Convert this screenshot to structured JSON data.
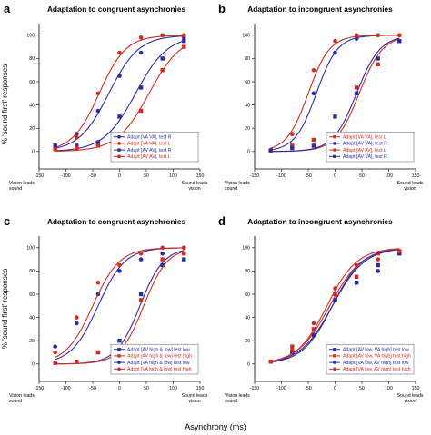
{
  "figure": {
    "y_axis_label": "% 'sound first' responses",
    "x_axis_label": "Asynchrony (ms)",
    "colors": {
      "red": "#d42b1e",
      "blue": "#2b2ba6"
    }
  },
  "chart_data": [
    {
      "type": "scatter",
      "panel_letter": "a",
      "title": "Adaptation to congruent asynchronies",
      "x_ticks": [
        -150,
        -100,
        -50,
        0,
        50,
        100,
        150
      ],
      "y_ticks": [
        0,
        20,
        40,
        60,
        80,
        100
      ],
      "xlim": [
        -150,
        150
      ],
      "ylim": [
        -15,
        110
      ],
      "left_end_label": [
        "Vision leads",
        "sound"
      ],
      "right_end_label": [
        "Sound leads",
        "vision"
      ],
      "legend_position": "bottom-right",
      "series": [
        {
          "name": "Adapt [VA VA], test R",
          "color": "#2b2ba6",
          "marker": "circle",
          "x": [
            -120,
            -80,
            -40,
            0,
            40,
            80,
            120
          ],
          "y": [
            5,
            15,
            35,
            65,
            85,
            100,
            98
          ],
          "pse": -20,
          "slope": 28
        },
        {
          "name": "Adapt [VA VA], test L",
          "color": "#d42b1e",
          "marker": "circle",
          "x": [
            -120,
            -80,
            -40,
            0,
            40,
            80,
            120
          ],
          "y": [
            3,
            12,
            50,
            85,
            98,
            100,
            100
          ],
          "pse": -38,
          "slope": 25
        },
        {
          "name": "Adapt [AV AV], test R",
          "color": "#2b2ba6",
          "marker": "square",
          "x": [
            -120,
            -80,
            -40,
            0,
            40,
            80,
            120
          ],
          "y": [
            5,
            5,
            8,
            30,
            55,
            80,
            95
          ],
          "pse": 30,
          "slope": 30
        },
        {
          "name": "Adapt [AV AV], test L",
          "color": "#d42b1e",
          "marker": "square",
          "x": [
            -120,
            -80,
            -40,
            0,
            40,
            80,
            120
          ],
          "y": [
            2,
            3,
            5,
            15,
            35,
            70,
            90
          ],
          "pse": 55,
          "slope": 30
        }
      ]
    },
    {
      "type": "scatter",
      "panel_letter": "b",
      "title": "Adaptation to incongruent asynchronies",
      "x_ticks": [
        -150,
        -100,
        -50,
        0,
        50,
        100,
        150
      ],
      "y_ticks": [
        0,
        20,
        40,
        60,
        80,
        100
      ],
      "xlim": [
        -150,
        150
      ],
      "ylim": [
        -15,
        110
      ],
      "left_end_label": [
        "Vision leads",
        "sound"
      ],
      "right_end_label": [
        "Sound leads",
        "vision"
      ],
      "legend_position": "bottom-right",
      "series": [
        {
          "name": "Adapt [VA VA], test L",
          "color": "#d42b1e",
          "marker": "square",
          "x": [
            -120,
            -80,
            -40,
            0,
            40,
            80,
            120
          ],
          "y": [
            1,
            5,
            10,
            15,
            55,
            75,
            95
          ],
          "pse": 45,
          "slope": 22
        },
        {
          "name": "Adapt [AV VA], test R",
          "color": "#2b2ba6",
          "marker": "circle",
          "x": [
            -120,
            -80,
            -40,
            0,
            40,
            80,
            120
          ],
          "y": [
            1,
            15,
            50,
            85,
            97,
            100,
            100
          ],
          "pse": -35,
          "slope": 20
        },
        {
          "name": "Adapt [AV AV], test L",
          "color": "#d42b1e",
          "marker": "circle",
          "x": [
            -120,
            -80,
            -40,
            0,
            40,
            80,
            120
          ],
          "y": [
            1,
            15,
            70,
            95,
            100,
            100,
            100
          ],
          "pse": -50,
          "slope": 20
        },
        {
          "name": "Adapt [AV VA], test R",
          "color": "#2b2ba6",
          "marker": "square",
          "x": [
            -120,
            -80,
            -40,
            0,
            40,
            80,
            120
          ],
          "y": [
            1,
            3,
            5,
            30,
            50,
            80,
            95
          ],
          "pse": 40,
          "slope": 22
        }
      ]
    },
    {
      "type": "scatter",
      "panel_letter": "c",
      "title": "Adaptation to congruent asynchronies",
      "x_ticks": [
        -150,
        -100,
        -50,
        0,
        50,
        100,
        150
      ],
      "y_ticks": [
        0,
        20,
        40,
        60,
        80,
        100
      ],
      "xlim": [
        -150,
        150
      ],
      "ylim": [
        -15,
        110
      ],
      "left_end_label": [
        "Vision leads",
        "sound"
      ],
      "right_end_label": [
        "Sound leads",
        "vision"
      ],
      "legend_position": "bottom-right",
      "series": [
        {
          "name": "Adapt [AV high & low] test low",
          "color": "#2b2ba6",
          "marker": "square",
          "x": [
            -120,
            -80,
            -40,
            0,
            40,
            80,
            120
          ],
          "y": [
            1,
            2,
            10,
            20,
            60,
            85,
            90
          ],
          "pse": 38,
          "slope": 22
        },
        {
          "name": "Adapt [AV high & low] test high",
          "color": "#d42b1e",
          "marker": "square",
          "x": [
            -120,
            -80,
            -40,
            0,
            40,
            80,
            120
          ],
          "y": [
            1,
            2,
            10,
            15,
            55,
            90,
            95
          ],
          "pse": 45,
          "slope": 22
        },
        {
          "name": "Adapt [VA high & low] test low",
          "color": "#2b2ba6",
          "marker": "circle",
          "x": [
            -120,
            -80,
            -40,
            0,
            40,
            80,
            120
          ],
          "y": [
            15,
            35,
            60,
            80,
            90,
            95,
            100
          ],
          "pse": -40,
          "slope": 25
        },
        {
          "name": "Adapt [VA high & low] test high",
          "color": "#d42b1e",
          "marker": "circle",
          "x": [
            -120,
            -80,
            -40,
            0,
            40,
            80,
            120
          ],
          "y": [
            10,
            40,
            70,
            85,
            95,
            100,
            100
          ],
          "pse": -50,
          "slope": 25
        }
      ]
    },
    {
      "type": "scatter",
      "panel_letter": "d",
      "title": "Adaptation to incongruent asynchronies",
      "x_ticks": [
        -150,
        -100,
        -50,
        0,
        50,
        100,
        150
      ],
      "y_ticks": [
        0,
        20,
        40,
        60,
        80,
        100
      ],
      "xlim": [
        -150,
        150
      ],
      "ylim": [
        -15,
        110
      ],
      "left_end_label": [
        "Vision leads",
        "sound"
      ],
      "right_end_label": [
        "Sound leads",
        "vision"
      ],
      "legend_position": "bottom-right",
      "series": [
        {
          "name": "Adapt [AV low, VA high] test low",
          "color": "#2b2ba6",
          "marker": "square",
          "x": [
            -120,
            -80,
            -40,
            0,
            40,
            80,
            120
          ],
          "y": [
            2,
            10,
            25,
            55,
            70,
            85,
            95
          ],
          "pse": -5,
          "slope": 30
        },
        {
          "name": "Adapt [AV low, VA high] test high",
          "color": "#d42b1e",
          "marker": "square",
          "x": [
            -120,
            -80,
            -40,
            0,
            40,
            80,
            120
          ],
          "y": [
            2,
            15,
            30,
            60,
            75,
            95,
            97
          ],
          "pse": -10,
          "slope": 30
        },
        {
          "name": "Adapt [VA low, AV high] test low",
          "color": "#2b2ba6",
          "marker": "circle",
          "x": [
            -120,
            -80,
            -40,
            0,
            40,
            80,
            120
          ],
          "y": [
            2,
            10,
            25,
            55,
            70,
            80,
            95
          ],
          "pse": -5,
          "slope": 28
        },
        {
          "name": "Adapt [VA low, AV high] test high",
          "color": "#d42b1e",
          "marker": "circle",
          "x": [
            -120,
            -80,
            -40,
            0,
            40,
            80,
            120
          ],
          "y": [
            2,
            12,
            35,
            65,
            85,
            90,
            97
          ],
          "pse": -15,
          "slope": 28
        }
      ]
    }
  ]
}
